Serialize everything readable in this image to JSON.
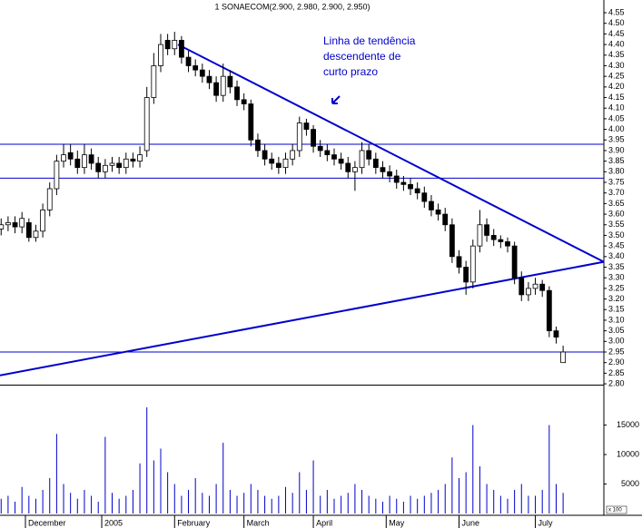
{
  "chart_data": {
    "type": "candlestick",
    "title": "1 SONAECOM(2.900, 2.980, 2.900, 2.950)",
    "annotation": {
      "lines": [
        "Linha de tendência",
        "descendente de",
        "curto prazo"
      ],
      "color": "#0000cc"
    },
    "xlim": [
      -7.33,
      166.75
    ],
    "xticks": [
      {
        "value": 0,
        "label": "December"
      },
      {
        "value": 22,
        "label": "2005"
      },
      {
        "value": 43,
        "label": "February"
      },
      {
        "value": 63,
        "label": "March"
      },
      {
        "value": 83,
        "label": "April"
      },
      {
        "value": 104,
        "label": "May"
      },
      {
        "value": 125,
        "label": "June"
      },
      {
        "value": 147,
        "label": "July"
      }
    ],
    "ylim": [
      2.796,
      4.61
    ],
    "yticks": [
      {
        "value": 2.8,
        "label": "2.80"
      },
      {
        "value": 2.85,
        "label": "2.85"
      },
      {
        "value": 2.9,
        "label": "2.90"
      },
      {
        "value": 2.95,
        "label": "2.95"
      },
      {
        "value": 3.0,
        "label": "3.00"
      },
      {
        "value": 3.05,
        "label": "3.05"
      },
      {
        "value": 3.1,
        "label": "3.10"
      },
      {
        "value": 3.15,
        "label": "3.15"
      },
      {
        "value": 3.2,
        "label": "3.20"
      },
      {
        "value": 3.25,
        "label": "3.25"
      },
      {
        "value": 3.3,
        "label": "3.30"
      },
      {
        "value": 3.35,
        "label": "3.35"
      },
      {
        "value": 3.4,
        "label": "3.40"
      },
      {
        "value": 3.45,
        "label": "3.45"
      },
      {
        "value": 3.5,
        "label": "3.50"
      },
      {
        "value": 3.55,
        "label": "3.55"
      },
      {
        "value": 3.6,
        "label": "3.60"
      },
      {
        "value": 3.65,
        "label": "3.65"
      },
      {
        "value": 3.7,
        "label": "3.70"
      },
      {
        "value": 3.75,
        "label": "3.75"
      },
      {
        "value": 3.8,
        "label": "3.80"
      },
      {
        "value": 3.85,
        "label": "3.85"
      },
      {
        "value": 3.9,
        "label": "3.90"
      },
      {
        "value": 3.95,
        "label": "3.95"
      },
      {
        "value": 4.0,
        "label": "4.00"
      },
      {
        "value": 4.05,
        "label": "4.05"
      },
      {
        "value": 4.1,
        "label": "4.10"
      },
      {
        "value": 4.15,
        "label": "4.15"
      },
      {
        "value": 4.2,
        "label": "4.20"
      },
      {
        "value": 4.25,
        "label": "4.25"
      },
      {
        "value": 4.3,
        "label": "4.30"
      },
      {
        "value": 4.35,
        "label": "4.35"
      },
      {
        "value": 4.4,
        "label": "4.40"
      },
      {
        "value": 4.45,
        "label": "4.45"
      },
      {
        "value": 4.5,
        "label": "4.50"
      },
      {
        "value": 4.55,
        "label": "4.55"
      }
    ],
    "x": [
      -7,
      -5,
      -3,
      -1,
      1,
      3,
      5,
      7,
      9,
      11,
      13,
      15,
      17,
      19,
      21,
      23,
      25,
      27,
      29,
      31,
      33,
      35,
      37,
      39,
      41,
      43,
      45,
      47,
      49,
      51,
      53,
      55,
      57,
      59,
      61,
      63,
      65,
      67,
      69,
      71,
      73,
      75,
      77,
      79,
      81,
      83,
      85,
      87,
      89,
      91,
      93,
      95,
      97,
      99,
      101,
      103,
      105,
      107,
      109,
      111,
      113,
      115,
      117,
      119,
      121,
      123,
      125,
      127,
      129,
      131,
      133,
      135,
      137,
      139,
      141,
      143,
      145,
      147,
      149,
      151,
      153,
      155
    ],
    "open": [
      3.53,
      3.55,
      3.56,
      3.54,
      3.56,
      3.49,
      3.52,
      3.62,
      3.72,
      3.85,
      3.89,
      3.86,
      3.82,
      3.88,
      3.84,
      3.8,
      3.83,
      3.84,
      3.82,
      3.86,
      3.85,
      3.9,
      4.15,
      4.3,
      4.42,
      4.38,
      4.42,
      4.34,
      4.3,
      4.28,
      4.25,
      4.22,
      4.16,
      4.25,
      4.2,
      4.14,
      4.12,
      3.95,
      3.9,
      3.86,
      3.84,
      3.82,
      3.86,
      3.9,
      4.03,
      4.0,
      3.92,
      3.9,
      3.88,
      3.86,
      3.84,
      3.8,
      3.82,
      3.9,
      3.86,
      3.82,
      3.8,
      3.78,
      3.75,
      3.74,
      3.72,
      3.7,
      3.66,
      3.62,
      3.6,
      3.55,
      3.4,
      3.35,
      3.28,
      3.45,
      3.55,
      3.5,
      3.48,
      3.47,
      3.45,
      3.3,
      3.22,
      3.25,
      3.27,
      3.24,
      3.05,
      2.9
    ],
    "high": [
      3.58,
      3.59,
      3.59,
      3.61,
      3.58,
      3.55,
      3.65,
      3.75,
      3.88,
      3.93,
      3.93,
      3.9,
      3.93,
      3.91,
      3.87,
      3.86,
      3.87,
      3.87,
      3.89,
      3.89,
      3.92,
      4.2,
      4.36,
      4.45,
      4.45,
      4.46,
      4.44,
      4.37,
      4.33,
      4.31,
      4.28,
      4.25,
      4.31,
      4.28,
      4.23,
      4.17,
      4.14,
      3.98,
      3.93,
      3.89,
      3.87,
      3.89,
      3.93,
      4.06,
      4.05,
      4.02,
      3.95,
      3.93,
      3.91,
      3.89,
      3.87,
      3.85,
      3.94,
      3.93,
      3.89,
      3.85,
      3.83,
      3.81,
      3.78,
      3.77,
      3.75,
      3.73,
      3.69,
      3.65,
      3.63,
      3.58,
      3.43,
      3.38,
      3.48,
      3.62,
      3.58,
      3.53,
      3.5,
      3.49,
      3.47,
      3.33,
      3.28,
      3.3,
      3.29,
      3.26,
      3.07,
      2.98
    ],
    "low": [
      3.5,
      3.52,
      3.51,
      3.51,
      3.47,
      3.47,
      3.49,
      3.59,
      3.69,
      3.82,
      3.83,
      3.79,
      3.79,
      3.81,
      3.77,
      3.77,
      3.8,
      3.79,
      3.79,
      3.82,
      3.82,
      3.87,
      4.12,
      4.27,
      4.35,
      4.35,
      4.31,
      4.27,
      4.25,
      4.22,
      4.19,
      4.13,
      4.13,
      4.17,
      4.11,
      4.09,
      3.92,
      3.87,
      3.83,
      3.81,
      3.79,
      3.79,
      3.83,
      3.87,
      3.97,
      3.89,
      3.87,
      3.85,
      3.83,
      3.81,
      3.77,
      3.71,
      3.79,
      3.83,
      3.79,
      3.77,
      3.75,
      3.72,
      3.71,
      3.69,
      3.67,
      3.63,
      3.59,
      3.57,
      3.52,
      3.37,
      3.32,
      3.22,
      3.25,
      3.42,
      3.47,
      3.45,
      3.44,
      3.42,
      3.27,
      3.19,
      3.19,
      3.22,
      3.21,
      3.02,
      2.99,
      2.9
    ],
    "close": [
      3.55,
      3.56,
      3.54,
      3.58,
      3.49,
      3.52,
      3.62,
      3.72,
      3.85,
      3.88,
      3.86,
      3.82,
      3.88,
      3.84,
      3.8,
      3.83,
      3.84,
      3.82,
      3.86,
      3.85,
      3.88,
      4.15,
      4.3,
      4.4,
      4.38,
      4.42,
      4.34,
      4.3,
      4.28,
      4.25,
      4.22,
      4.16,
      4.25,
      4.2,
      4.14,
      4.12,
      3.95,
      3.9,
      3.86,
      3.84,
      3.82,
      3.86,
      3.9,
      4.03,
      4.0,
      3.92,
      3.9,
      3.88,
      3.86,
      3.84,
      3.8,
      3.82,
      3.9,
      3.86,
      3.82,
      3.8,
      3.78,
      3.75,
      3.74,
      3.72,
      3.7,
      3.66,
      3.62,
      3.6,
      3.55,
      3.4,
      3.35,
      3.28,
      3.45,
      3.55,
      3.5,
      3.48,
      3.47,
      3.45,
      3.3,
      3.22,
      3.25,
      3.27,
      3.24,
      3.05,
      3.02,
      2.95
    ],
    "volume": [
      2500,
      3000,
      2000,
      4500,
      3000,
      2500,
      4000,
      6000,
      13500,
      5000,
      3500,
      2500,
      4000,
      3000,
      2000,
      13000,
      3500,
      2500,
      3000,
      4000,
      8500,
      18000,
      9000,
      11000,
      7000,
      5000,
      3000,
      4000,
      6000,
      3500,
      3000,
      5000,
      12000,
      4000,
      3000,
      3500,
      5000,
      4000,
      3000,
      2500,
      3000,
      4500,
      3500,
      7000,
      4000,
      9000,
      3000,
      4000,
      2500,
      3000,
      3500,
      5000,
      4000,
      3000,
      2500,
      2000,
      3000,
      2500,
      2000,
      3000,
      2500,
      3000,
      3500,
      4000,
      5000,
      9500,
      6000,
      7000,
      15000,
      8000,
      5000,
      4000,
      3000,
      2500,
      4000,
      5000,
      3000,
      3000,
      4000,
      15000,
      5000,
      3500
    ],
    "volume_ylim": [
      0,
      21700
    ],
    "volume_yticks": [
      5000,
      10000,
      15000
    ],
    "volume_unit": "x 100",
    "hlines": [
      3.93,
      3.77,
      2.95
    ],
    "trendlines": [
      {
        "x": [
          44,
          166.75
        ],
        "y": [
          4.4,
          3.375
        ]
      },
      {
        "x": [
          -7.33,
          166.75
        ],
        "y": [
          2.84,
          3.375
        ]
      }
    ],
    "line_color": "#0000cc",
    "up_color": "#ffffff",
    "down_color": "#000000"
  }
}
